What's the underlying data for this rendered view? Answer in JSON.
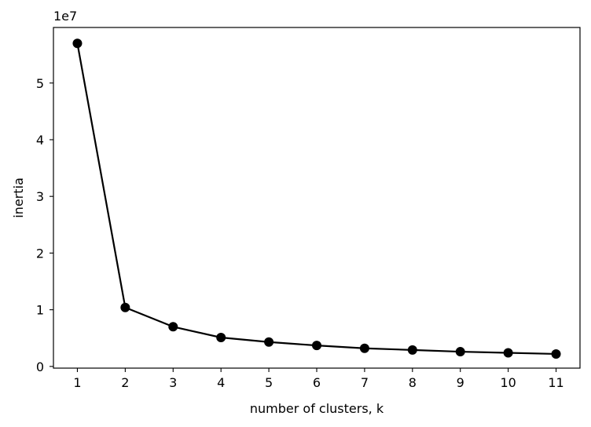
{
  "chart_data": {
    "type": "line",
    "title": "",
    "xlabel": "number of clusters, k",
    "ylabel": "inertia",
    "y_offset_label": "1e7",
    "x": [
      1,
      2,
      3,
      4,
      5,
      6,
      7,
      8,
      9,
      10,
      11
    ],
    "x_tick_labels": [
      "1",
      "2",
      "3",
      "4",
      "5",
      "6",
      "7",
      "8",
      "9",
      "10",
      "11"
    ],
    "y_ticks": [
      0,
      1,
      2,
      3,
      4,
      5
    ],
    "y_tick_labels": [
      "0",
      "1",
      "2",
      "3",
      "4",
      "5"
    ],
    "y_scale_multiplier": 10000000,
    "series": [
      {
        "values": [
          57000000,
          10400000,
          7000000,
          5100000,
          4300000,
          3700000,
          3200000,
          2900000,
          2600000,
          2400000,
          2200000
        ],
        "color": "#000000",
        "marker": "circle"
      }
    ],
    "xlim": [
      0.5,
      11.5
    ],
    "ylim": [
      -300000,
      59800000
    ],
    "grid": false,
    "legend": "none"
  }
}
